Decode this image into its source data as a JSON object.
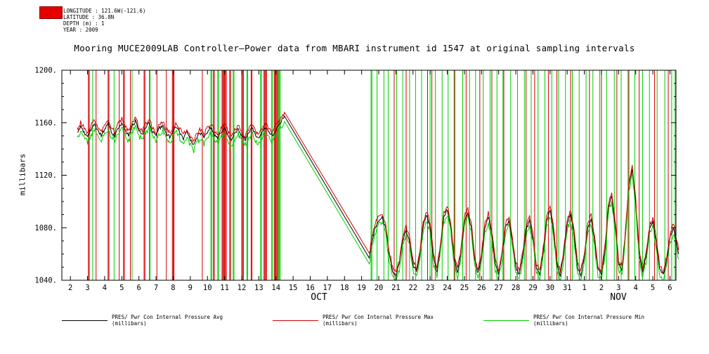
{
  "header": {
    "logo_color": "#e60000",
    "meta_lines": [
      "LONGITUDE : 121.6W(-121.6)",
      "LATITUDE : 36.8N",
      "DEPTH (m) : 1",
      "YEAR : 2009"
    ],
    "title": "Mooring MUCE2009LAB Controller—Power data from MBARI instrument id 1547 at original sampling intervals"
  },
  "legend": [
    {
      "label": "PRES/ Pwr Con Internal Pressure Avg (millibars)",
      "color": "#000000"
    },
    {
      "label": "PRES/ Pwr Con Internal Pressure Max (millibars)",
      "color": "#d40000"
    },
    {
      "label": "PRES/ Pwr Con Internal Pressure Min (millibars)",
      "color": "#00cc00"
    }
  ],
  "chart_data": {
    "type": "line",
    "title": "Mooring MUCE2009LAB Controller—Power data from MBARI instrument id 1547 at original sampling intervals",
    "ylabel": "millibars",
    "xlabel": "",
    "ylim": [
      1040,
      1200
    ],
    "xlim": [
      1.5,
      37.35
    ],
    "grid": false,
    "legend_position": "bottom",
    "y_major_ticks": [
      1040,
      1080,
      1120,
      1160,
      1200
    ],
    "y_tick_labels": [
      "1040.",
      "1080.",
      "1120.",
      "1160.",
      "1200."
    ],
    "y_minor_step": 10,
    "x_ticks": [
      {
        "x": 2,
        "label": "2"
      },
      {
        "x": 3,
        "label": "3"
      },
      {
        "x": 4,
        "label": "4"
      },
      {
        "x": 5,
        "label": "5"
      },
      {
        "x": 6,
        "label": "6"
      },
      {
        "x": 7,
        "label": "7"
      },
      {
        "x": 8,
        "label": "8"
      },
      {
        "x": 9,
        "label": "9"
      },
      {
        "x": 10,
        "label": "10"
      },
      {
        "x": 11,
        "label": "11"
      },
      {
        "x": 12,
        "label": "12"
      },
      {
        "x": 13,
        "label": "13"
      },
      {
        "x": 14,
        "label": "14"
      },
      {
        "x": 15,
        "label": "15"
      },
      {
        "x": 16,
        "label": "16"
      },
      {
        "x": 17,
        "label": "17"
      },
      {
        "x": 18,
        "label": "18"
      },
      {
        "x": 19,
        "label": "19"
      },
      {
        "x": 20,
        "label": "20"
      },
      {
        "x": 21,
        "label": "21"
      },
      {
        "x": 22,
        "label": "22"
      },
      {
        "x": 23,
        "label": "23"
      },
      {
        "x": 24,
        "label": "24"
      },
      {
        "x": 25,
        "label": "25"
      },
      {
        "x": 26,
        "label": "26"
      },
      {
        "x": 27,
        "label": "27"
      },
      {
        "x": 28,
        "label": "28"
      },
      {
        "x": 29,
        "label": "29"
      },
      {
        "x": 30,
        "label": "30"
      },
      {
        "x": 31,
        "label": "31"
      },
      {
        "x": 32,
        "label": "1"
      },
      {
        "x": 33,
        "label": "2"
      },
      {
        "x": 34,
        "label": "3"
      },
      {
        "x": 35,
        "label": "4"
      },
      {
        "x": 36,
        "label": "5"
      },
      {
        "x": 37,
        "label": "6"
      }
    ],
    "month_labels": [
      {
        "x": 16.5,
        "label": "OCT"
      },
      {
        "x": 34.0,
        "label": "NOV"
      }
    ],
    "x_unit": "day of October 2009 (32+ = November)",
    "base_points": [
      [
        2.4,
        1152
      ],
      [
        2.6,
        1157
      ],
      [
        2.8,
        1153
      ],
      [
        3.0,
        1149
      ],
      [
        3.2,
        1155
      ],
      [
        3.4,
        1159
      ],
      [
        3.6,
        1154
      ],
      [
        3.8,
        1150
      ],
      [
        4.0,
        1155
      ],
      [
        4.2,
        1159
      ],
      [
        4.4,
        1153
      ],
      [
        4.6,
        1150
      ],
      [
        4.8,
        1156
      ],
      [
        5.0,
        1160
      ],
      [
        5.2,
        1154
      ],
      [
        5.4,
        1150
      ],
      [
        5.6,
        1157
      ],
      [
        5.8,
        1161
      ],
      [
        6.0,
        1154
      ],
      [
        6.2,
        1151
      ],
      [
        6.4,
        1157
      ],
      [
        6.6,
        1160
      ],
      [
        6.8,
        1153
      ],
      [
        7.0,
        1150
      ],
      [
        7.2,
        1156
      ],
      [
        7.4,
        1158
      ],
      [
        7.6,
        1152
      ],
      [
        7.8,
        1149
      ],
      [
        8.0,
        1154
      ],
      [
        8.2,
        1157
      ],
      [
        8.4,
        1152
      ],
      [
        8.6,
        1148
      ],
      [
        8.8,
        1153
      ],
      [
        9.0,
        1147
      ],
      [
        9.2,
        1143
      ],
      [
        9.4,
        1149
      ],
      [
        9.6,
        1152
      ],
      [
        9.8,
        1148
      ],
      [
        10.0,
        1153
      ],
      [
        10.2,
        1156
      ],
      [
        10.4,
        1151
      ],
      [
        10.6,
        1148
      ],
      [
        10.8,
        1153
      ],
      [
        11.0,
        1156
      ],
      [
        11.2,
        1150
      ],
      [
        11.4,
        1147
      ],
      [
        11.6,
        1152
      ],
      [
        11.8,
        1155
      ],
      [
        12.0,
        1150
      ],
      [
        12.2,
        1147
      ],
      [
        12.4,
        1152
      ],
      [
        12.6,
        1156
      ],
      [
        12.8,
        1151
      ],
      [
        13.0,
        1148
      ],
      [
        13.2,
        1153
      ],
      [
        13.4,
        1157
      ],
      [
        13.6,
        1152
      ],
      [
        13.8,
        1150
      ],
      [
        14.0,
        1155
      ],
      [
        14.2,
        1159
      ],
      [
        14.4,
        1163
      ],
      [
        14.5,
        1165
      ],
      [
        19.45,
        1056
      ],
      [
        19.6,
        1070
      ],
      [
        19.8,
        1080
      ],
      [
        20.0,
        1086
      ],
      [
        20.2,
        1088
      ],
      [
        20.4,
        1080
      ],
      [
        20.6,
        1060
      ],
      [
        20.8,
        1047
      ],
      [
        21.0,
        1044
      ],
      [
        21.2,
        1052
      ],
      [
        21.4,
        1070
      ],
      [
        21.6,
        1078
      ],
      [
        21.8,
        1070
      ],
      [
        22.0,
        1052
      ],
      [
        22.2,
        1046
      ],
      [
        22.4,
        1060
      ],
      [
        22.6,
        1082
      ],
      [
        22.8,
        1090
      ],
      [
        23.0,
        1080
      ],
      [
        23.2,
        1056
      ],
      [
        23.4,
        1046
      ],
      [
        23.6,
        1065
      ],
      [
        23.8,
        1088
      ],
      [
        24.0,
        1094
      ],
      [
        24.2,
        1082
      ],
      [
        24.4,
        1056
      ],
      [
        24.6,
        1046
      ],
      [
        24.8,
        1060
      ],
      [
        25.0,
        1085
      ],
      [
        25.2,
        1092
      ],
      [
        25.4,
        1080
      ],
      [
        25.6,
        1055
      ],
      [
        25.8,
        1045
      ],
      [
        26.0,
        1058
      ],
      [
        26.2,
        1080
      ],
      [
        26.4,
        1088
      ],
      [
        26.6,
        1075
      ],
      [
        26.8,
        1052
      ],
      [
        27.0,
        1045
      ],
      [
        27.2,
        1060
      ],
      [
        27.4,
        1080
      ],
      [
        27.6,
        1085
      ],
      [
        27.8,
        1070
      ],
      [
        28.0,
        1050
      ],
      [
        28.2,
        1044
      ],
      [
        28.4,
        1058
      ],
      [
        28.6,
        1078
      ],
      [
        28.8,
        1086
      ],
      [
        29.0,
        1072
      ],
      [
        29.2,
        1050
      ],
      [
        29.4,
        1044
      ],
      [
        29.6,
        1062
      ],
      [
        29.8,
        1085
      ],
      [
        30.0,
        1093
      ],
      [
        30.2,
        1078
      ],
      [
        30.4,
        1052
      ],
      [
        30.6,
        1044
      ],
      [
        30.8,
        1060
      ],
      [
        31.0,
        1083
      ],
      [
        31.2,
        1090
      ],
      [
        31.4,
        1075
      ],
      [
        31.6,
        1050
      ],
      [
        31.8,
        1044
      ],
      [
        32.0,
        1058
      ],
      [
        32.2,
        1080
      ],
      [
        32.4,
        1087
      ],
      [
        32.6,
        1070
      ],
      [
        32.8,
        1048
      ],
      [
        33.0,
        1044
      ],
      [
        33.2,
        1062
      ],
      [
        33.4,
        1095
      ],
      [
        33.6,
        1104
      ],
      [
        33.8,
        1082
      ],
      [
        34.0,
        1052
      ],
      [
        34.2,
        1048
      ],
      [
        34.4,
        1075
      ],
      [
        34.6,
        1112
      ],
      [
        34.8,
        1124
      ],
      [
        35.0,
        1098
      ],
      [
        35.2,
        1060
      ],
      [
        35.4,
        1046
      ],
      [
        35.6,
        1058
      ],
      [
        35.8,
        1078
      ],
      [
        36.0,
        1085
      ],
      [
        36.2,
        1068
      ],
      [
        36.4,
        1048
      ],
      [
        36.6,
        1044
      ],
      [
        36.8,
        1055
      ],
      [
        37.0,
        1072
      ],
      [
        37.2,
        1080
      ],
      [
        37.4,
        1068
      ],
      [
        37.5,
        1060
      ]
    ],
    "series": [
      {
        "id": "avg",
        "name": "PRES/ Pwr Con Internal Pressure Avg (millibars)",
        "color": "#000000",
        "delta": 0,
        "jitter": 1.3
      },
      {
        "id": "max",
        "name": "PRES/ Pwr Con Internal Pressure Max (millibars)",
        "color": "#d40000",
        "delta": 3,
        "jitter": 1.8
      },
      {
        "id": "min",
        "name": "PRES/ Pwr Con Internal Pressure Min (millibars)",
        "color": "#00cc00",
        "delta": -4,
        "jitter": 2.2
      }
    ],
    "spikes": [
      {
        "color": "#d40000",
        "x": [
          3.05,
          3.1,
          3.5,
          4.2,
          4.25,
          4.85,
          5.1,
          5.15,
          5.5,
          6.3,
          6.35,
          6.62,
          7.05,
          7.6,
          7.95,
          8.0,
          8.05,
          9.7,
          10.35,
          10.4,
          10.85,
          10.9,
          10.95,
          11.0,
          11.05,
          11.1,
          11.3,
          11.35,
          12.0,
          12.05,
          12.1,
          12.55,
          12.6,
          13.3,
          13.35,
          13.4,
          13.45,
          13.9,
          13.95,
          14.0,
          14.05,
          14.1,
          20.9,
          21.6,
          22.85,
          23.1,
          24.4,
          25.1,
          25.9,
          26.6,
          27.3,
          28.6,
          29.1,
          29.9,
          30.4,
          31.2,
          32.3,
          33.0,
          33.9,
          34.6,
          35.2,
          36.1,
          36.9
        ]
      },
      {
        "color": "#00cc00",
        "x": [
          3.3,
          4.55,
          5.6,
          6.65,
          10.2,
          10.25,
          10.6,
          10.65,
          11.5,
          11.55,
          12.3,
          12.35,
          13.1,
          13.15,
          13.75,
          13.8,
          14.15,
          14.2,
          14.25,
          19.55,
          19.6,
          19.9,
          20.3,
          20.55,
          21.05,
          21.4,
          21.8,
          22.15,
          22.5,
          23.0,
          23.3,
          23.7,
          24.05,
          24.45,
          24.9,
          25.3,
          25.65,
          26.1,
          26.5,
          26.9,
          27.25,
          27.7,
          28.1,
          28.5,
          28.9,
          29.3,
          29.7,
          30.1,
          30.5,
          30.9,
          31.3,
          31.7,
          32.1,
          32.5,
          32.9,
          33.3,
          33.75,
          34.15,
          34.55,
          34.95,
          35.4,
          35.8,
          36.25,
          36.7,
          37.1,
          37.3
        ]
      }
    ]
  }
}
